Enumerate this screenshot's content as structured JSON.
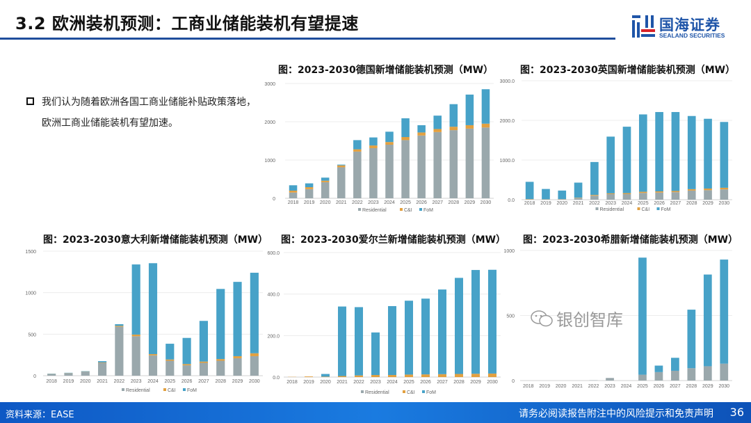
{
  "header": {
    "title": "3.2 欧洲装机预测：工商业储能装机有望提速",
    "logo_cn": "国海证券",
    "logo_en": "SEALAND SECURITIES"
  },
  "bullet": {
    "text": "我们认为随着欧洲各国工商业储能补贴政策落地，欧洲工商业储能装机有望加速。"
  },
  "footer": {
    "source": "资料来源：EASE",
    "disclaimer": "请务必阅读报告附注中的风险提示和免责声明",
    "page": "36"
  },
  "watermark": "银创智库",
  "colors": {
    "Residential": "#9aa8ac",
    "C&I": "#e2a040",
    "FoM": "#47a2c8"
  },
  "chart_data": [
    {
      "id": "germany",
      "type": "bar",
      "stacked": true,
      "title": "图：2023-2030德国新增储能装机预测（MW）",
      "categories": [
        "2018",
        "2019",
        "2020",
        "2021",
        "2022",
        "2023",
        "2024",
        "2025",
        "2026",
        "2027",
        "2028",
        "2029",
        "2030"
      ],
      "ylim": [
        0,
        3000
      ],
      "yticks": [
        "0",
        "1000",
        "2000",
        "3000"
      ],
      "yticks_values": [
        0,
        1000,
        2000,
        3000
      ],
      "legend": "bottom",
      "grid": true,
      "series": [
        {
          "name": "Residential",
          "values": [
            150,
            240,
            420,
            810,
            1220,
            1310,
            1400,
            1520,
            1640,
            1730,
            1780,
            1820,
            1850
          ]
        },
        {
          "name": "C&I",
          "values": [
            50,
            50,
            40,
            50,
            60,
            70,
            70,
            80,
            80,
            80,
            90,
            90,
            100
          ]
        },
        {
          "name": "FoM",
          "values": [
            140,
            100,
            80,
            20,
            240,
            210,
            270,
            490,
            190,
            350,
            590,
            800,
            900
          ]
        }
      ]
    },
    {
      "id": "uk",
      "type": "bar",
      "stacked": true,
      "title": "图：2023-2030英国新增储能装机预测（MW）",
      "categories": [
        "2018",
        "2019",
        "2020",
        "2021",
        "2022",
        "2023",
        "2024",
        "2025",
        "2026",
        "2027",
        "2028",
        "2029",
        "2030"
      ],
      "ylim": [
        0,
        3000
      ],
      "yticks": [
        "0.0",
        "1000.0",
        "2000.0",
        "3000.0"
      ],
      "yticks_values": [
        0,
        1000,
        2000,
        3000
      ],
      "legend": "bottom",
      "grid": true,
      "series": [
        {
          "name": "Residential",
          "values": [
            5,
            5,
            10,
            40,
            100,
            140,
            140,
            170,
            180,
            190,
            230,
            240,
            260
          ]
        },
        {
          "name": "C&I",
          "values": [
            10,
            5,
            5,
            10,
            20,
            20,
            25,
            30,
            30,
            30,
            35,
            40,
            40
          ]
        },
        {
          "name": "FoM",
          "values": [
            435,
            260,
            215,
            380,
            830,
            1430,
            1675,
            1950,
            2000,
            1990,
            1845,
            1760,
            1660
          ]
        }
      ]
    },
    {
      "id": "italy",
      "type": "bar",
      "stacked": true,
      "title": "图：2023-2030意大利新增储能装机预测（MW）",
      "categories": [
        "2018",
        "2019",
        "2020",
        "2021",
        "2022",
        "2023",
        "2024",
        "2025",
        "2026",
        "2027",
        "2028",
        "2029",
        "2030"
      ],
      "ylim": [
        0,
        1500
      ],
      "yticks": [
        "0",
        "500",
        "1000",
        "1500"
      ],
      "yticks_values": [
        0,
        500,
        1000,
        1500
      ],
      "legend": "bottom",
      "grid": true,
      "series": [
        {
          "name": "Residential",
          "values": [
            20,
            30,
            50,
            155,
            590,
            475,
            245,
            180,
            125,
            155,
            180,
            210,
            235
          ]
        },
        {
          "name": "C&I",
          "values": [
            2,
            2,
            2,
            5,
            10,
            20,
            15,
            15,
            15,
            15,
            20,
            25,
            35
          ]
        },
        {
          "name": "FoM",
          "values": [
            3,
            3,
            3,
            15,
            20,
            845,
            1095,
            190,
            315,
            490,
            845,
            895,
            970
          ]
        }
      ]
    },
    {
      "id": "ireland",
      "type": "bar",
      "stacked": true,
      "title": "图：2023-2030爱尔兰新增储能装机预测（MW）",
      "categories": [
        "2018",
        "2019",
        "2020",
        "2021",
        "2022",
        "2023",
        "2024",
        "2025",
        "2026",
        "2027",
        "2028",
        "2029",
        "2030"
      ],
      "ylim": [
        0,
        600
      ],
      "yticks": [
        "0.0",
        "200.0",
        "400.0",
        "600.0"
      ],
      "yticks_values": [
        0,
        200,
        400,
        600
      ],
      "legend": "bottom",
      "grid": true,
      "series": [
        {
          "name": "Residential",
          "values": [
            0,
            0,
            0,
            0,
            0,
            0,
            0,
            0,
            0,
            0,
            0,
            0,
            0
          ]
        },
        {
          "name": "C&I",
          "values": [
            1,
            3,
            2,
            5,
            8,
            10,
            10,
            12,
            13,
            14,
            15,
            16,
            17
          ]
        },
        {
          "name": "FoM",
          "values": [
            0,
            0,
            13,
            335,
            329,
            205,
            332,
            356,
            365,
            408,
            463,
            500,
            500
          ]
        }
      ]
    },
    {
      "id": "greece",
      "type": "bar",
      "stacked": true,
      "title": "图：2023-2030希腊新增储能装机预测（MW）",
      "categories": [
        "2018",
        "2019",
        "2020",
        "2021",
        "2022",
        "2023",
        "2024",
        "2025",
        "2026",
        "2027",
        "2028",
        "2029",
        "2030"
      ],
      "ylim": [
        0,
        1000
      ],
      "yticks": [
        "0",
        "500",
        "1000"
      ],
      "yticks_values": [
        0,
        500,
        1000
      ],
      "legend": "hidden",
      "grid": true,
      "series": [
        {
          "name": "Residential",
          "values": [
            0,
            0,
            0,
            0,
            2,
            20,
            0,
            45,
            65,
            75,
            95,
            110,
            130
          ]
        },
        {
          "name": "C&I",
          "values": [
            0,
            0,
            0,
            0,
            0,
            0,
            0,
            0,
            0,
            0,
            0,
            0,
            0
          ]
        },
        {
          "name": "FoM",
          "values": [
            0,
            0,
            0,
            0,
            0,
            0,
            0,
            900,
            50,
            100,
            450,
            705,
            800
          ]
        }
      ]
    }
  ]
}
